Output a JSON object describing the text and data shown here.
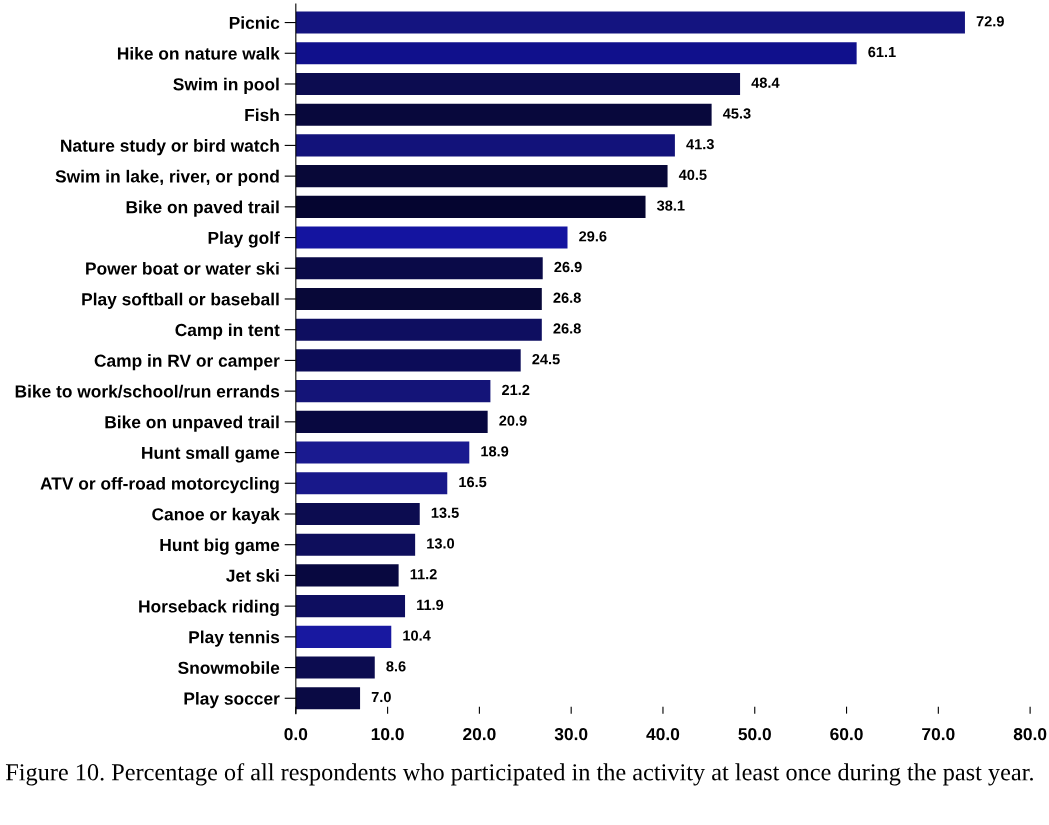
{
  "chart_data": {
    "type": "bar",
    "orientation": "horizontal",
    "categories": [
      "Picnic",
      "Hike on nature walk",
      "Swim in pool",
      "Fish",
      "Nature study or bird watch",
      "Swim in lake, river, or pond",
      "Bike on paved trail",
      "Play golf",
      "Power boat or water ski",
      "Play softball or baseball",
      "Camp in tent",
      "Camp in RV or camper",
      "Bike to work/school/run errands",
      "Bike on unpaved trail",
      "Hunt small game",
      "ATV or off-road motorcycling",
      "Canoe or kayak",
      "Hunt big game",
      "Jet ski",
      "Horseback riding",
      "Play tennis",
      "Snowmobile",
      "Play soccer"
    ],
    "values": [
      72.9,
      61.1,
      48.4,
      45.3,
      41.3,
      40.5,
      38.1,
      29.6,
      26.9,
      26.8,
      26.8,
      24.5,
      21.2,
      20.9,
      18.9,
      16.5,
      13.5,
      13.0,
      11.2,
      11.9,
      10.4,
      8.6,
      7.0
    ],
    "value_labels": [
      "72.9",
      "61.1",
      "48.4",
      "45.3",
      "41.3",
      "40.5",
      "38.1",
      "29.6",
      "26.9",
      "26.8",
      "26.8",
      "24.5",
      "21.2",
      "20.9",
      "18.9",
      "16.5",
      "13.5",
      "13.0",
      "11.2",
      "11.9",
      "10.4",
      "8.6",
      "7.0"
    ],
    "colors": [
      "#141480",
      "#10108c",
      "#0c0c50",
      "#08083c",
      "#12127a",
      "#080838",
      "#050530",
      "#1414a0",
      "#0a0a48",
      "#080838",
      "#0e0e60",
      "#0c0c58",
      "#141478",
      "#080840",
      "#1a1a90",
      "#18188a",
      "#0c0c50",
      "#0e0e5c",
      "#080840",
      "#0e0e60",
      "#1818a0",
      "#0c0c50",
      "#0a0a44"
    ],
    "xlim": [
      0,
      80
    ],
    "xticks": [
      {
        "value": 0,
        "label": "0.0"
      },
      {
        "value": 10,
        "label": "10.0"
      },
      {
        "value": 20,
        "label": "20.0"
      },
      {
        "value": 30,
        "label": "30.0"
      },
      {
        "value": 40,
        "label": "40.0"
      },
      {
        "value": 50,
        "label": "50.0"
      },
      {
        "value": 60,
        "label": "60.0"
      },
      {
        "value": 70,
        "label": "70.0"
      },
      {
        "value": 80,
        "label": "80.0"
      }
    ],
    "grid": false,
    "legend": false,
    "annotations": [
      "Figure 10. Percentage of all respondents who participated in the activity at least once during the past year."
    ]
  }
}
